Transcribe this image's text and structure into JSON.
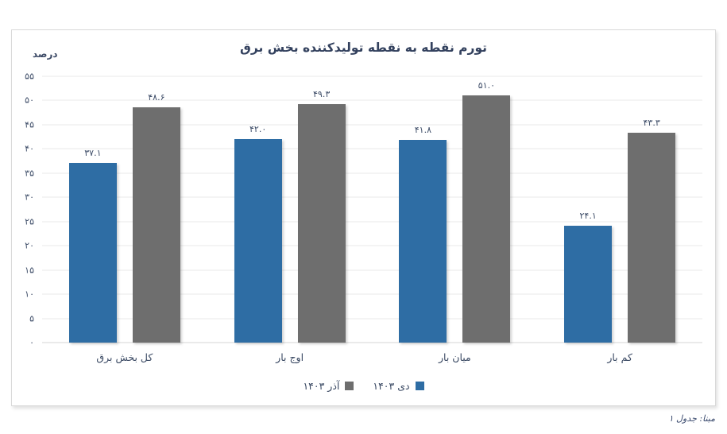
{
  "page": {
    "source_note": "مبنا: جدول ۱"
  },
  "chart_data": {
    "type": "bar",
    "title": "تورم نقطه به نقطه تولیدکننده بخش برق",
    "xlabel": "",
    "ylabel": "درصد",
    "categories": [
      "کل بخش برق",
      "اوج بار",
      "میان بار",
      "کم بار"
    ],
    "series": [
      {
        "name": "دی ۱۴۰۳",
        "color": "#2e6da4",
        "values": [
          37.1,
          42.0,
          41.8,
          24.1
        ],
        "labels": [
          "۳۷.۱",
          "۴۲.۰",
          "۴۱.۸",
          "۲۴.۱"
        ]
      },
      {
        "name": "آذر ۱۴۰۳",
        "color": "#6e6e6e",
        "values": [
          48.6,
          49.3,
          51.0,
          43.3
        ],
        "labels": [
          "۴۸.۶",
          "۴۹.۳",
          "۵۱.۰",
          "۴۳.۳"
        ]
      }
    ],
    "ylim": [
      0,
      55
    ],
    "ytick_step": 5,
    "ytick_labels": [
      "۰",
      "۵",
      "۱۰",
      "۱۵",
      "۲۰",
      "۲۵",
      "۳۰",
      "۳۵",
      "۴۰",
      "۴۵",
      "۵۰",
      "۵۵"
    ],
    "grid": true,
    "legend_position": "bottom"
  }
}
